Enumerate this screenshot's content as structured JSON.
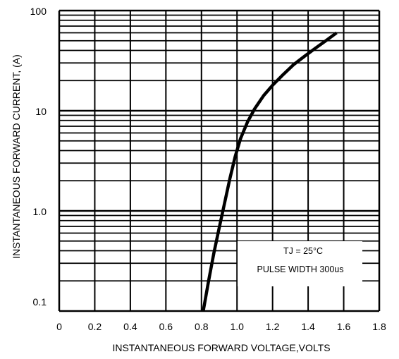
{
  "chart_data": {
    "type": "line",
    "xlabel": "INSTANTANEOUS FORWARD VOLTAGE,VOLTS",
    "ylabel": "INSTANTANEOUS FORWARD CURRENT, (A)",
    "xlim": [
      0,
      1.8
    ],
    "ylim": [
      0.1,
      100
    ],
    "y_scale": "log",
    "grid": true,
    "x_ticks": [
      "0",
      "0.2",
      "0.4",
      "0.6",
      "0.8",
      "1.0",
      "1.2",
      "1.4",
      "1.6",
      "1.8"
    ],
    "y_ticks": [
      "0.1",
      "1.0",
      "10",
      "100"
    ],
    "series": [
      {
        "x": [
          0.81,
          0.84,
          0.87,
          0.9,
          0.93,
          0.96,
          0.99,
          1.02,
          1.06,
          1.1,
          1.15,
          1.2,
          1.26,
          1.32,
          1.38,
          1.44,
          1.5,
          1.56
        ],
        "y": [
          0.1,
          0.2,
          0.38,
          0.68,
          1.2,
          2.1,
          3.5,
          5.3,
          7.8,
          10.5,
          14.2,
          18.0,
          23.0,
          29.0,
          35.0,
          42.0,
          50.0,
          60.0
        ]
      }
    ],
    "annotations": [
      "TJ = 25°C",
      "PULSE WIDTH 300us"
    ]
  }
}
